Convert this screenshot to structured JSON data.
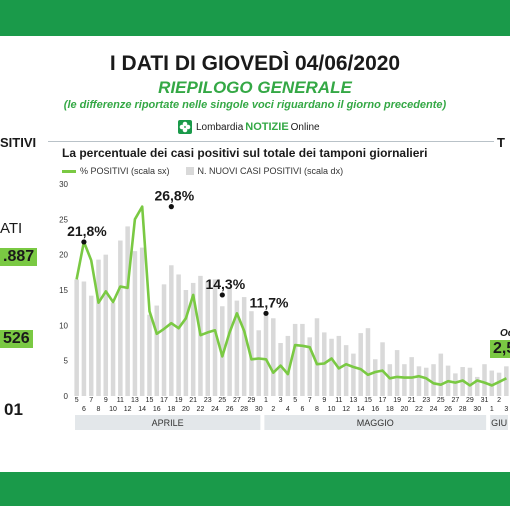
{
  "header": {
    "title": "I DATI DI GIOVEDÌ 04/06/2020",
    "subtitle": "RIEPILOGO GENERALE",
    "note": "(le differenze riportate nelle singole voci riguardano il giorno precedente)",
    "logo_prefix": "Lombardia",
    "logo_brand": "NOTIZIE",
    "logo_suffix": "Online"
  },
  "left_cut": {
    "heading": "SITIVI",
    "label": "ATI",
    "value1": ".887",
    "value2": "526",
    "value3": "01"
  },
  "right_cut": {
    "heading": "T",
    "label": "Oc",
    "value": "2,5"
  },
  "colors": {
    "green_band": "#1a9a4a",
    "line": "#7ac943",
    "bars": "#d9d9d9",
    "accent_text": "#34a845"
  },
  "chart_data": {
    "type": "bar",
    "title": "La percentuale dei casi positivi sul totale dei tamponi giornalieri",
    "legend_position": "top-left",
    "grid": false,
    "ylim": [
      0,
      30
    ],
    "y_ticks": [
      "0",
      "5",
      "10",
      "15",
      "20",
      "25",
      "30"
    ],
    "x_labels": [
      "5",
      "6",
      "7",
      "8",
      "9",
      "10",
      "11",
      "12",
      "13",
      "14",
      "15",
      "16",
      "17",
      "18",
      "19",
      "20",
      "21",
      "22",
      "23",
      "24",
      "25",
      "26",
      "27",
      "28",
      "29",
      "30",
      "1",
      "2",
      "3",
      "4",
      "5",
      "6",
      "7",
      "8",
      "9",
      "10",
      "11",
      "12",
      "13",
      "14",
      "15",
      "16",
      "17",
      "18",
      "19",
      "20",
      "21",
      "22",
      "23",
      "24",
      "25",
      "26",
      "27",
      "28",
      "29",
      "30",
      "31",
      "1",
      "2",
      "3"
    ],
    "month_labels": [
      "APRILE",
      "MAGGIO",
      "GIU"
    ],
    "series": [
      {
        "name": "% POSITIVI (scala sx)",
        "type": "line",
        "values": [
          16.5,
          21.8,
          19.2,
          13.2,
          14.8,
          13.3,
          15.5,
          15.3,
          25.0,
          26.8,
          12.0,
          8.8,
          9.5,
          10.3,
          9.6,
          11.0,
          14.3,
          8.6,
          9.0,
          9.3,
          5.6,
          9.0,
          11.7,
          9.2,
          5.2,
          5.3,
          5.2,
          3.3,
          4.3,
          3.1,
          7.2,
          7.1,
          6.9,
          4.5,
          4.6,
          5.3,
          3.9,
          4.5,
          4.1,
          3.8,
          3.0,
          3.4,
          3.6,
          2.5,
          2.7,
          2.6,
          2.6,
          2.8,
          2.5,
          1.8,
          1.6,
          2.1,
          1.9,
          2.2,
          1.5,
          2.2,
          1.9,
          1.5,
          2.0,
          2.5
        ]
      },
      {
        "name": "N. NUOVI CASI POSITIVI (scala dx)",
        "type": "bar",
        "values": [
          16.5,
          16.2,
          14.2,
          19.3,
          20.0,
          13.2,
          22.0,
          24.0,
          20.5,
          21.0,
          11.5,
          12.8,
          15.8,
          18.5,
          17.2,
          15.0,
          16.0,
          17.0,
          16.2,
          16.5,
          12.7,
          15.2,
          13.5,
          14.0,
          12.0,
          9.3,
          11.4,
          11.0,
          7.5,
          8.5,
          10.2,
          10.2,
          8.3,
          11.0,
          9.0,
          8.1,
          8.5,
          7.2,
          6.0,
          8.9,
          9.6,
          5.2,
          7.6,
          4.5,
          6.5,
          4.5,
          5.5,
          4.2,
          4.0,
          4.5,
          6.0,
          4.3,
          3.2,
          4.1,
          4.0,
          2.7,
          4.5,
          3.6,
          3.3,
          4.2
        ]
      }
    ],
    "annotations": [
      {
        "text": "21,8%",
        "index": 1,
        "value": 21.8
      },
      {
        "text": "26,8%",
        "index": 13,
        "value": 26.8
      },
      {
        "text": "14,3%",
        "index": 20,
        "value": 14.3
      },
      {
        "text": "11,7%",
        "index": 26,
        "value": 11.7
      }
    ]
  }
}
